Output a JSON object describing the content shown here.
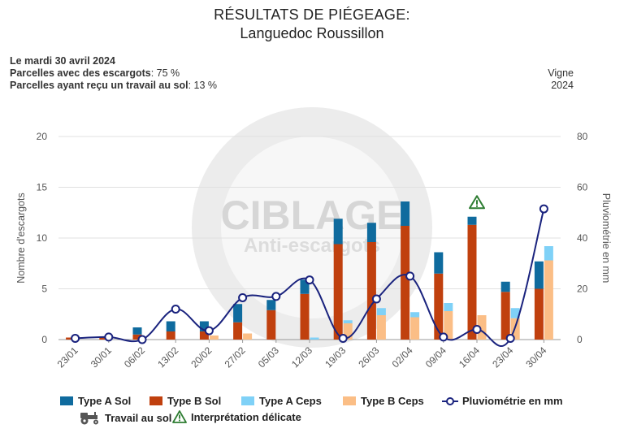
{
  "header": {
    "title": "RÉSULTATS DE PIÉGEAGE:",
    "subtitle": "Languedoc Roussillon",
    "date_line": "Le mardi 30 avril 2024",
    "parcelles_label": "Parcelles avec des escargots",
    "parcelles_value": ": 75 %",
    "travail_label": "Parcelles ayant reçu un travail au sol",
    "travail_value": ": 13 %",
    "crop": "Vigne",
    "year": "2024"
  },
  "watermark": {
    "line1": "CIBLAGE",
    "line2": "Anti-escargots"
  },
  "chart_data": {
    "type": "bar",
    "categories": [
      "23/01",
      "30/01",
      "06/02",
      "13/02",
      "20/02",
      "27/02",
      "05/03",
      "12/03",
      "19/03",
      "26/03",
      "02/04",
      "09/04",
      "16/04",
      "23/04",
      "30/04"
    ],
    "ylabel": "Nombre d'escargots",
    "y2label": "Pluviométrie en mm",
    "ylim": [
      0,
      20
    ],
    "y2lim": [
      0,
      80
    ],
    "yticks": [
      "0",
      "5",
      "10",
      "15",
      "20"
    ],
    "y2ticks": [
      "0",
      "20",
      "40",
      "60",
      "80"
    ],
    "stacks": [
      {
        "name": "Type B Sol",
        "stack": "sol",
        "color": "#c0400e",
        "values": [
          0.2,
          0.3,
          0.5,
          0.8,
          0.8,
          1.7,
          2.9,
          4.5,
          9.4,
          9.6,
          11.2,
          6.5,
          11.3,
          4.7,
          5.0
        ]
      },
      {
        "name": "Type A Sol",
        "stack": "sol",
        "color": "#0f6b9e",
        "values": [
          0.0,
          0.0,
          0.7,
          1.0,
          1.0,
          1.8,
          1.0,
          1.4,
          2.5,
          1.9,
          2.4,
          2.1,
          0.8,
          1.0,
          2.7
        ]
      },
      {
        "name": "Type B Ceps",
        "stack": "ceps",
        "color": "#fbbe86",
        "values": [
          0.0,
          0.0,
          0.0,
          0.0,
          0.4,
          0.6,
          0.0,
          0.0,
          1.6,
          2.4,
          2.2,
          2.8,
          2.4,
          2.1,
          7.8
        ]
      },
      {
        "name": "Type A Ceps",
        "stack": "ceps",
        "color": "#7fd1f7",
        "values": [
          0.0,
          0.0,
          0.0,
          0.0,
          0.0,
          0.0,
          0.0,
          0.2,
          0.3,
          0.7,
          0.5,
          0.8,
          0.0,
          1.0,
          1.4
        ]
      }
    ],
    "line": {
      "name": "Pluviométrie en mm",
      "color": "#1a237e",
      "values": [
        0.5,
        1.0,
        0.0,
        12.0,
        3.5,
        16.5,
        17.0,
        23.5,
        0.5,
        16.0,
        25.0,
        1.0,
        4.0,
        0.5,
        51.5
      ]
    },
    "markers": [
      {
        "category": "16/04",
        "type": "Interprétation délicate",
        "y": 13.5
      }
    ],
    "grid": true,
    "legend_position": "bottom"
  },
  "legend": {
    "items": [
      {
        "label": "Type A Sol",
        "color": "#0f6b9e",
        "kind": "bar"
      },
      {
        "label": "Type B Sol",
        "color": "#c0400e",
        "kind": "bar"
      },
      {
        "label": "Type A Ceps",
        "color": "#7fd1f7",
        "kind": "bar"
      },
      {
        "label": "Type B Ceps",
        "color": "#fbbe86",
        "kind": "bar"
      },
      {
        "label": "Pluviométrie en mm",
        "color": "#1a237e",
        "kind": "line"
      },
      {
        "label": "Travail au sol",
        "color": "#555555",
        "kind": "tractor"
      },
      {
        "label": "Interprétation délicate",
        "color": "#2e7d32",
        "kind": "warning"
      }
    ]
  }
}
